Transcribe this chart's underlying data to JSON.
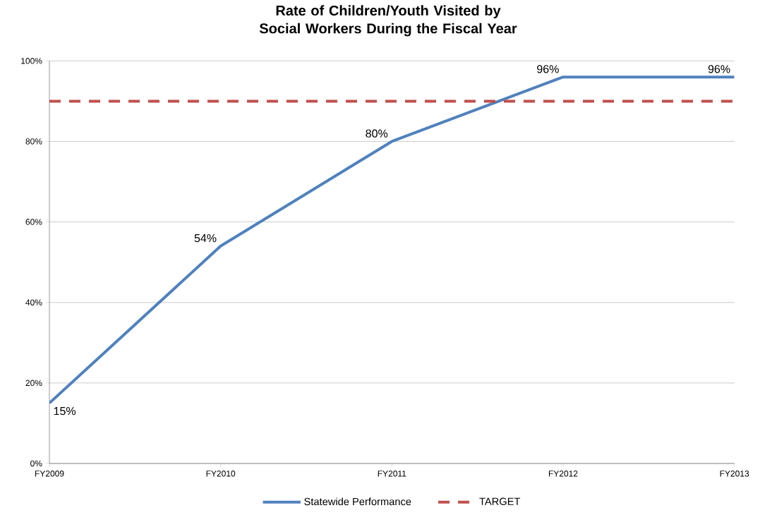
{
  "chart_data": {
    "type": "line",
    "title": "Rate of Children/Youth Visited by Social Workers During the Fiscal Year",
    "categories": [
      "FY2009",
      "FY2010",
      "FY2011",
      "FY2012",
      "FY2013"
    ],
    "series": [
      {
        "name": "Statewide Performance",
        "color": "#4f81bd",
        "values": [
          15,
          54,
          80,
          96,
          96
        ],
        "value_labels": [
          "15%",
          "54%",
          "80%",
          "96%",
          "96%"
        ]
      },
      {
        "name": "TARGET",
        "color": "#c0504d",
        "values": [
          90,
          90,
          90,
          90,
          90
        ],
        "line_style": "dashed"
      }
    ],
    "ylim": [
      0,
      100
    ],
    "yticks": [
      {
        "value": 0,
        "label": "0%"
      },
      {
        "value": 20,
        "label": "20%"
      },
      {
        "value": 40,
        "label": "40%"
      },
      {
        "value": 60,
        "label": "60%"
      },
      {
        "value": 80,
        "label": "80%"
      },
      {
        "value": 100,
        "label": "100%"
      }
    ],
    "grid": "y",
    "legend": "bottom",
    "marker": "none"
  }
}
